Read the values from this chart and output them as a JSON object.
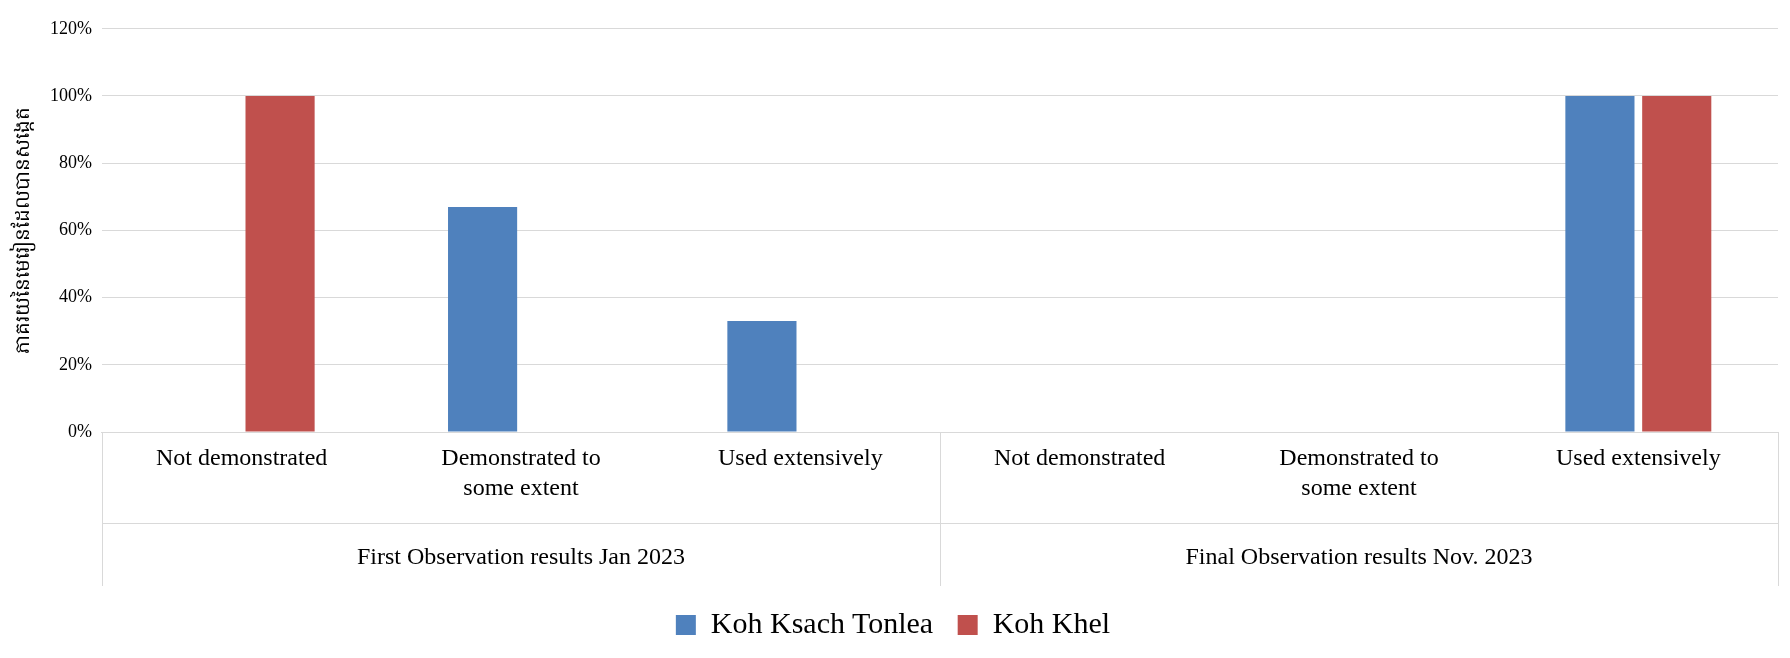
{
  "chart_data": {
    "type": "bar",
    "ylabel": "ភាគរយនៃមេរៀនដែលបានសង្កេត",
    "categories": [
      "Not demonstrated",
      "Demonstrated to some extent",
      "Used extensively",
      "Not demonstrated",
      "Demonstrated to some extent",
      "Used extensively"
    ],
    "series": [
      {
        "name": "Koh Ksach Tonlea",
        "color": "#4f81bd",
        "values": [
          0,
          67,
          33,
          0,
          0,
          100
        ]
      },
      {
        "name": "Koh Khel",
        "color": "#c0504d",
        "values": [
          100,
          0,
          0,
          0,
          0,
          100
        ]
      }
    ],
    "ylim": [
      0,
      120
    ],
    "yticks": [
      {
        "value": 0,
        "label": "0%"
      },
      {
        "value": 20,
        "label": "20%"
      },
      {
        "value": 40,
        "label": "40%"
      },
      {
        "value": 60,
        "label": "60%"
      },
      {
        "value": 80,
        "label": "80%"
      },
      {
        "value": 100,
        "label": "100%"
      },
      {
        "value": 120,
        "label": "120%"
      }
    ],
    "grid": "y",
    "legend": "bottom",
    "annotations": [
      "First Observation results Jan 2023",
      "Final Observation results Nov. 2023"
    ]
  }
}
